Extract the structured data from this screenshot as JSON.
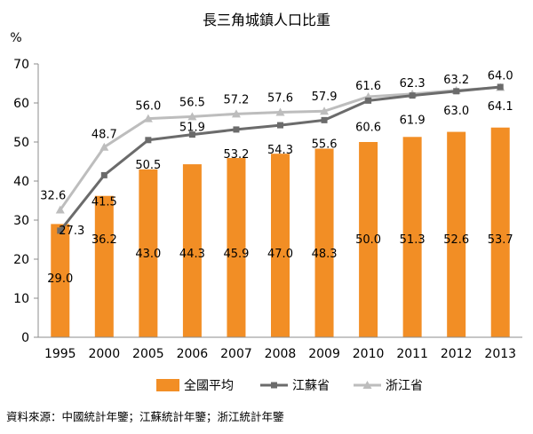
{
  "chart_data": {
    "type": "bar",
    "title": "長三角城鎮人口比重",
    "ylabel": "%",
    "xlabel": "",
    "categories": [
      "1995",
      "2000",
      "2005",
      "2006",
      "2007",
      "2008",
      "2009",
      "2010",
      "2011",
      "2012",
      "2013"
    ],
    "ylim": [
      0,
      70
    ],
    "yticks": [
      0,
      10,
      20,
      30,
      40,
      50,
      60,
      70
    ],
    "grid": false,
    "legend_position": "bottom",
    "series": [
      {
        "name": "全國平均",
        "type": "bar",
        "color": "#f28e25",
        "values": [
          29.0,
          36.2,
          43.0,
          44.3,
          45.9,
          47.0,
          48.3,
          50.0,
          51.3,
          52.6,
          53.7
        ],
        "labels": [
          "29.0",
          "36.2",
          "43.0",
          "44.3",
          "45.9",
          "47.0",
          "48.3",
          "50.0",
          "51.3",
          "52.6",
          "53.7"
        ]
      },
      {
        "name": "江蘇省",
        "type": "line",
        "marker": "square",
        "color": "#6b6b6b",
        "values": [
          27.3,
          41.5,
          50.5,
          51.9,
          53.2,
          54.3,
          55.6,
          60.6,
          61.9,
          63.0,
          64.1
        ],
        "labels": [
          "27.3",
          "41.5",
          "50.5",
          "51.9",
          "53.2",
          "54.3",
          "55.6",
          "60.6",
          "61.9",
          "63.0",
          "64.1"
        ]
      },
      {
        "name": "浙江省",
        "type": "line",
        "marker": "triangle",
        "color": "#bdbdbd",
        "values": [
          32.6,
          48.7,
          56.0,
          56.5,
          57.2,
          57.6,
          57.9,
          61.6,
          62.3,
          63.2,
          64.0
        ],
        "labels": [
          "32.6",
          "48.7",
          "56.0",
          "56.5",
          "57.2",
          "57.6",
          "57.9",
          "61.6",
          "62.3",
          "63.2",
          "64.0"
        ]
      }
    ]
  },
  "source_note": "資料來源：中國統計年鑒；江蘇統計年鑒；浙江統計年鑒"
}
